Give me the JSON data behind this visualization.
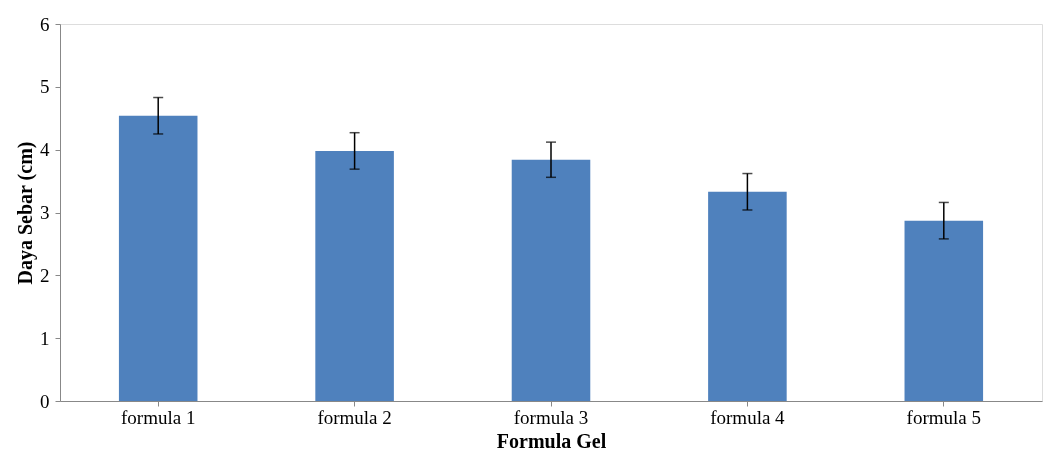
{
  "chart_data": {
    "type": "bar",
    "xlabel": "Formula Gel",
    "ylabel": "Daya Sebar (cm)",
    "categories": [
      "formula 1",
      "formula 2",
      "formula 3",
      "formula 4",
      "formula 5"
    ],
    "values": [
      4.54,
      3.98,
      3.84,
      3.33,
      2.87
    ],
    "errors": [
      0.29,
      0.29,
      0.28,
      0.29,
      0.29
    ],
    "color": "#4f81bd",
    "ylim": [
      0,
      6
    ],
    "yticks": [
      0,
      1,
      2,
      3,
      4,
      5,
      6
    ],
    "grid": false
  }
}
